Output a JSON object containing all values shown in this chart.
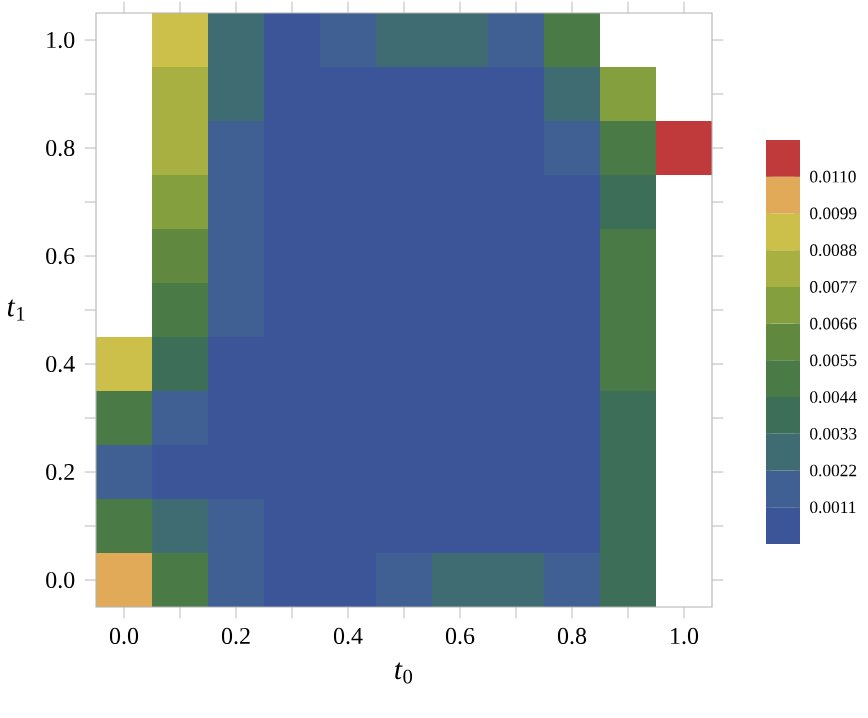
{
  "chart_data": {
    "type": "heatmap",
    "xlabel": "*t*$_{0}$",
    "ylabel": "*t*$_{1}$",
    "categories": [
      "0.0",
      null,
      "0.2",
      null,
      "0.4",
      null,
      "0.6",
      null,
      "0.8",
      null,
      "1.0"
    ],
    "y_categories": [
      "1.0",
      null,
      "0.8",
      null,
      "0.6",
      null,
      "0.4",
      null,
      "0.2",
      null,
      "0.0"
    ],
    "cells": [
      [
        null,
        0.0093,
        0.0027,
        0.0005,
        0.0016,
        0.0027,
        0.0027,
        0.0016,
        0.0049,
        null,
        null
      ],
      [
        null,
        0.0082,
        0.0027,
        0.0005,
        0.0005,
        0.0005,
        0.0005,
        0.0005,
        0.0027,
        0.0071,
        null
      ],
      [
        null,
        0.0082,
        0.0016,
        0.0005,
        0.0005,
        0.0005,
        0.0005,
        0.0005,
        0.0016,
        0.0049,
        0.0115
      ],
      [
        null,
        0.0071,
        0.0016,
        0.0005,
        0.0005,
        0.0005,
        0.0005,
        0.0005,
        0.0005,
        0.0038,
        null
      ],
      [
        null,
        0.006,
        0.0016,
        0.0005,
        0.0005,
        0.0005,
        0.0005,
        0.0005,
        0.0005,
        0.0049,
        null
      ],
      [
        null,
        0.0049,
        0.0016,
        0.0005,
        0.0005,
        0.0005,
        0.0005,
        0.0005,
        0.0005,
        0.0049,
        null
      ],
      [
        0.0093,
        0.0038,
        0.0005,
        0.0005,
        0.0005,
        0.0005,
        0.0005,
        0.0005,
        0.0005,
        0.0049,
        null
      ],
      [
        0.0049,
        0.0016,
        0.0005,
        0.0005,
        0.0005,
        0.0005,
        0.0005,
        0.0005,
        0.0005,
        0.0038,
        null
      ],
      [
        0.0016,
        0.0005,
        0.0005,
        0.0005,
        0.0005,
        0.0005,
        0.0005,
        0.0005,
        0.0005,
        0.0038,
        null
      ],
      [
        0.0049,
        0.0027,
        0.0016,
        0.0005,
        0.0005,
        0.0005,
        0.0005,
        0.0005,
        0.0005,
        0.0038,
        null
      ],
      [
        0.0104,
        0.0049,
        0.0016,
        0.0005,
        0.0005,
        0.0016,
        0.0027,
        0.0027,
        0.0016,
        0.0038,
        null
      ]
    ],
    "clim": [
      0,
      0.0121
    ],
    "cticks": [
      0.0011,
      0.0022,
      0.0033,
      0.0044,
      0.0055,
      0.0066,
      0.0077,
      0.0088,
      0.0099,
      {
        "value": 0.011,
        "label": "0.0110"
      }
    ],
    "colors": [
      "#3b5598",
      "#405f92",
      "#3f6c72",
      "#3d6e58",
      "#4a7a45",
      "#60893f",
      "#84a03e",
      "#a8b042",
      "#cdc04a",
      "#e0aa58",
      "#c0393b"
    ]
  }
}
